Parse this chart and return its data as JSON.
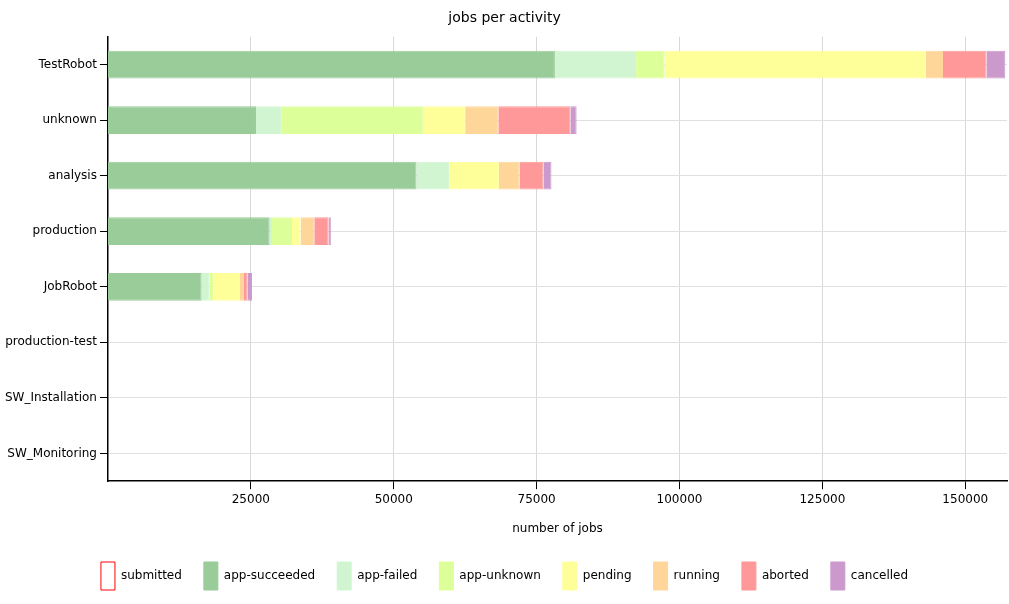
{
  "chart_data": {
    "type": "bar",
    "orientation": "horizontal",
    "stacked": true,
    "title": "jobs per activity",
    "xlabel": "number of jobs",
    "categories": [
      "TestRobot",
      "unknown",
      "analysis",
      "production",
      "JobRobot",
      "production-test",
      "SW_Installation",
      "SW_Monitoring"
    ],
    "series": [
      {
        "name": "submitted",
        "color": "#ff0000",
        "values": [
          0,
          0,
          0,
          0,
          0,
          0,
          0,
          0
        ]
      },
      {
        "name": "app-succeeded",
        "color": "#99cc99",
        "values": [
          78200,
          25900,
          54000,
          28300,
          16400,
          0,
          0,
          0
        ]
      },
      {
        "name": "app-failed",
        "color": "#d1f5d1",
        "values": [
          14200,
          4400,
          5700,
          400,
          1400,
          0,
          0,
          0
        ]
      },
      {
        "name": "app-unknown",
        "color": "#ddff99",
        "values": [
          5000,
          24800,
          0,
          3500,
          600,
          0,
          0,
          0
        ]
      },
      {
        "name": "pending",
        "color": "#ffff99",
        "values": [
          45700,
          7400,
          8700,
          1500,
          4700,
          0,
          0,
          0
        ]
      },
      {
        "name": "running",
        "color": "#ffd699",
        "values": [
          3000,
          5800,
          3600,
          2400,
          700,
          0,
          0,
          0
        ]
      },
      {
        "name": "aborted",
        "color": "#ff9999",
        "values": [
          7600,
          12600,
          4200,
          2500,
          600,
          0,
          0,
          0
        ]
      },
      {
        "name": "cancelled",
        "color": "#cc99cc",
        "values": [
          3300,
          1100,
          1400,
          400,
          800,
          0,
          0,
          0
        ]
      }
    ],
    "xlim": [
      0,
      157300
    ],
    "xticks": [
      25000,
      50000,
      75000,
      100000,
      125000,
      150000
    ],
    "grid": true,
    "legend": "bottom"
  }
}
